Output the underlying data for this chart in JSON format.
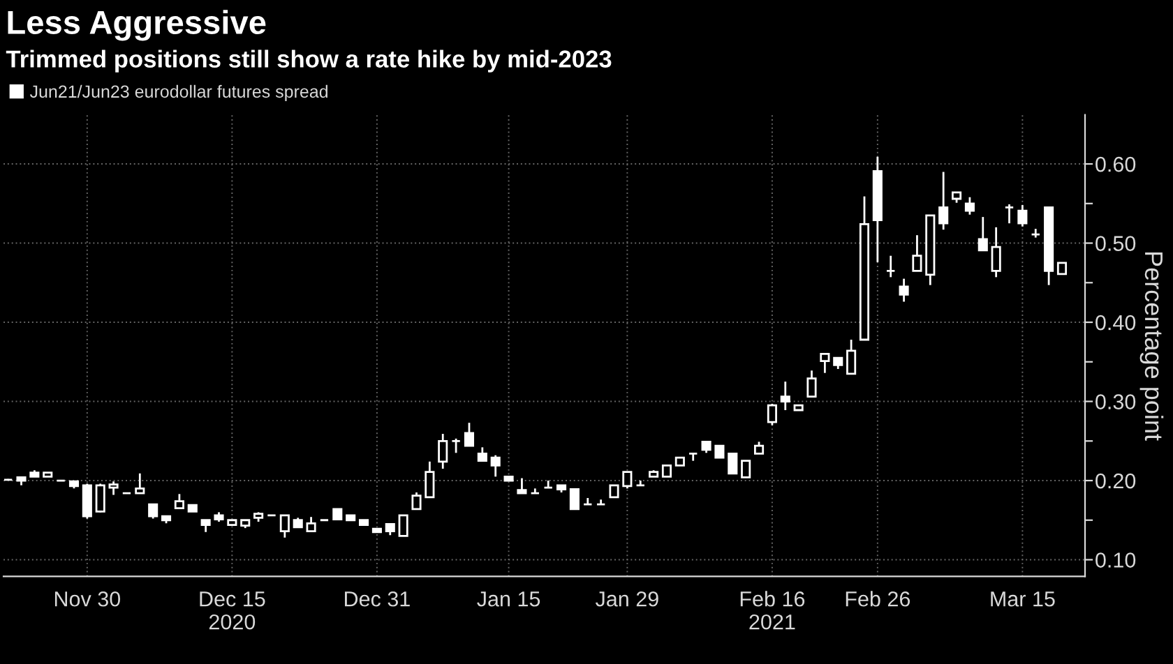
{
  "chart_data": {
    "type": "candlestick",
    "title": "Less Aggressive",
    "subtitle": "Trimmed positions still show a rate hike by mid-2023",
    "ylabel": "Percentage point",
    "categories": [
      null,
      null,
      null,
      null,
      null,
      null,
      "Nov 30",
      null,
      null,
      null,
      null,
      null,
      null,
      null,
      null,
      null,
      null,
      "Dec 15\n2020",
      null,
      null,
      null,
      null,
      null,
      null,
      null,
      null,
      null,
      null,
      "Dec 31",
      null,
      null,
      null,
      null,
      null,
      null,
      null,
      null,
      null,
      "Jan 15",
      null,
      null,
      null,
      null,
      null,
      null,
      null,
      null,
      "Jan 29",
      null,
      null,
      null,
      null,
      null,
      null,
      null,
      null,
      null,
      null,
      "Feb 16\n2021",
      null,
      null,
      null,
      null,
      null,
      null,
      null,
      "Feb 26",
      null,
      null,
      null,
      null,
      null,
      null,
      null,
      null,
      null,
      null,
      "Mar 15",
      null,
      null,
      null
    ],
    "series": [
      {
        "name": "Jun21/Jun23 eurodollar futures spread",
        "color": "#ffffff",
        "ohlc": [
          [
            0.201,
            0.202,
            0.2,
            0.201
          ],
          [
            0.204,
            0.204,
            0.194,
            0.2
          ],
          [
            0.21,
            0.213,
            0.205,
            0.205
          ],
          [
            0.205,
            0.21,
            0.205,
            0.21
          ],
          [
            0.2,
            0.2,
            0.2,
            0.2
          ],
          [
            0.199,
            0.2,
            0.19,
            0.193
          ],
          [
            0.194,
            0.196,
            0.152,
            0.155
          ],
          [
            0.161,
            0.196,
            0.16,
            0.194
          ],
          [
            0.191,
            0.199,
            0.182,
            0.195
          ],
          [
            0.184,
            0.184,
            0.184,
            0.184
          ],
          [
            0.184,
            0.209,
            0.184,
            0.19
          ],
          [
            0.17,
            0.17,
            0.152,
            0.155
          ],
          [
            0.155,
            0.155,
            0.146,
            0.15
          ],
          [
            0.165,
            0.183,
            0.165,
            0.174
          ],
          [
            0.169,
            0.169,
            0.161,
            0.161
          ],
          [
            0.15,
            0.15,
            0.135,
            0.144
          ],
          [
            0.156,
            0.16,
            0.148,
            0.151
          ],
          [
            0.144,
            0.15,
            0.144,
            0.15
          ],
          [
            0.143,
            0.15,
            0.14,
            0.15
          ],
          [
            0.153,
            0.16,
            0.148,
            0.158
          ],
          [
            0.156,
            0.156,
            0.156,
            0.156
          ],
          [
            0.136,
            0.156,
            0.128,
            0.156
          ],
          [
            0.15,
            0.153,
            0.141,
            0.141
          ],
          [
            0.136,
            0.154,
            0.136,
            0.146
          ],
          [
            0.15,
            0.15,
            0.15,
            0.15
          ],
          [
            0.164,
            0.164,
            0.151,
            0.151
          ],
          [
            0.156,
            0.156,
            0.15,
            0.15
          ],
          [
            0.15,
            0.15,
            0.144,
            0.144
          ],
          [
            0.139,
            0.139,
            0.135,
            0.135
          ],
          [
            0.145,
            0.145,
            0.131,
            0.136
          ],
          [
            0.13,
            0.156,
            0.13,
            0.156
          ],
          [
            0.164,
            0.185,
            0.164,
            0.181
          ],
          [
            0.179,
            0.224,
            0.179,
            0.211
          ],
          [
            0.224,
            0.259,
            0.215,
            0.25
          ],
          [
            0.25,
            0.253,
            0.235,
            0.25
          ],
          [
            0.26,
            0.273,
            0.244,
            0.244
          ],
          [
            0.234,
            0.242,
            0.225,
            0.225
          ],
          [
            0.229,
            0.232,
            0.205,
            0.219
          ],
          [
            0.205,
            0.205,
            0.2,
            0.2
          ],
          [
            0.188,
            0.203,
            0.184,
            0.184
          ],
          [
            0.184,
            0.19,
            0.184,
            0.184
          ],
          [
            0.191,
            0.2,
            0.191,
            0.191
          ],
          [
            0.194,
            0.194,
            0.185,
            0.189
          ],
          [
            0.189,
            0.189,
            0.164,
            0.164
          ],
          [
            0.17,
            0.178,
            0.17,
            0.17
          ],
          [
            0.17,
            0.176,
            0.17,
            0.17
          ],
          [
            0.179,
            0.194,
            0.179,
            0.194
          ],
          [
            0.193,
            0.211,
            0.19,
            0.211
          ],
          [
            0.194,
            0.2,
            0.194,
            0.194
          ],
          [
            0.205,
            0.213,
            0.205,
            0.211
          ],
          [
            0.205,
            0.219,
            0.205,
            0.219
          ],
          [
            0.219,
            0.229,
            0.219,
            0.229
          ],
          [
            0.234,
            0.234,
            0.225,
            0.234
          ],
          [
            0.249,
            0.249,
            0.235,
            0.239
          ],
          [
            0.244,
            0.244,
            0.229,
            0.229
          ],
          [
            0.234,
            0.234,
            0.209,
            0.209
          ],
          [
            0.204,
            0.225,
            0.204,
            0.225
          ],
          [
            0.234,
            0.249,
            0.234,
            0.244
          ],
          [
            0.274,
            0.297,
            0.27,
            0.295
          ],
          [
            0.306,
            0.325,
            0.289,
            0.3
          ],
          [
            0.289,
            0.295,
            0.289,
            0.295
          ],
          [
            0.306,
            0.339,
            0.306,
            0.329
          ],
          [
            0.351,
            0.36,
            0.336,
            0.36
          ],
          [
            0.355,
            0.355,
            0.341,
            0.346
          ],
          [
            0.335,
            0.378,
            0.335,
            0.364
          ],
          [
            0.378,
            0.559,
            0.378,
            0.524
          ],
          [
            0.591,
            0.609,
            0.476,
            0.529
          ],
          [
            0.465,
            0.484,
            0.457,
            0.465
          ],
          [
            0.445,
            0.455,
            0.426,
            0.435
          ],
          [
            0.465,
            0.51,
            0.465,
            0.484
          ],
          [
            0.46,
            0.535,
            0.447,
            0.535
          ],
          [
            0.545,
            0.59,
            0.517,
            0.525
          ],
          [
            0.556,
            0.564,
            0.551,
            0.564
          ],
          [
            0.55,
            0.558,
            0.536,
            0.541
          ],
          [
            0.505,
            0.533,
            0.491,
            0.491
          ],
          [
            0.465,
            0.52,
            0.457,
            0.495
          ],
          [
            0.545,
            0.549,
            0.525,
            0.545
          ],
          [
            0.541,
            0.548,
            0.521,
            0.525
          ],
          [
            0.511,
            0.518,
            0.507,
            0.511
          ],
          [
            0.545,
            0.545,
            0.447,
            0.465
          ],
          [
            0.461,
            0.475,
            0.461,
            0.475
          ]
        ]
      }
    ],
    "ylim": [
      0.079,
      0.662
    ],
    "yticks": [
      {
        "value": 0.1,
        "label": "0.10"
      },
      {
        "value": 0.15,
        "label": null
      },
      {
        "value": 0.2,
        "label": "0.20"
      },
      {
        "value": 0.25,
        "label": null
      },
      {
        "value": 0.3,
        "label": "0.30"
      },
      {
        "value": 0.35,
        "label": null
      },
      {
        "value": 0.4,
        "label": "0.40"
      },
      {
        "value": 0.45,
        "label": null
      },
      {
        "value": 0.5,
        "label": "0.50"
      },
      {
        "value": 0.55,
        "label": null
      },
      {
        "value": 0.6,
        "label": "0.60"
      }
    ],
    "grid": true,
    "legend": "top left"
  }
}
